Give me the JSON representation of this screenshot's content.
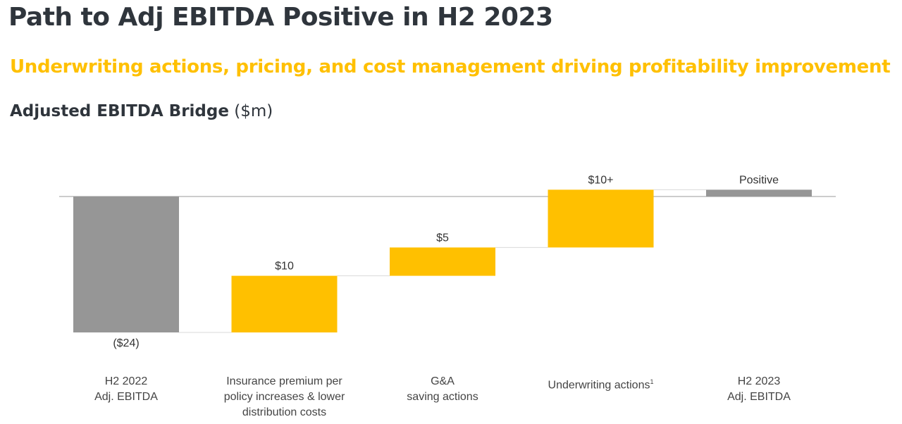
{
  "header": {
    "title": "Path to Adj EBITDA Positive in H2 2023",
    "subtitle": "Underwriting actions, pricing, and cost management driving profitability improvement",
    "chart_heading": "Adjusted EBITDA Bridge",
    "chart_unit": "($m)"
  },
  "colors": {
    "total": "#969696",
    "step": "#ffc000",
    "text": "#2f353c",
    "accent": "#ffc000"
  },
  "chart_data": {
    "type": "waterfall",
    "title": "Adjusted EBITDA Bridge ($m)",
    "ylabel": "$m",
    "categories": [
      {
        "lines": [
          "H2 2022",
          "Adj. EBITDA"
        ],
        "footnote": ""
      },
      {
        "lines": [
          "Insurance premium per",
          "policy increases & lower",
          "distribution costs"
        ],
        "footnote": ""
      },
      {
        "lines": [
          "G&A",
          "saving actions"
        ],
        "footnote": ""
      },
      {
        "lines": [
          "Underwriting actions"
        ],
        "footnote": "1"
      },
      {
        "lines": [
          "H2 2023",
          "Adj. EBITDA"
        ],
        "footnote": ""
      }
    ],
    "bars": [
      {
        "kind": "total",
        "start": 0,
        "end": -24,
        "label": "($24)"
      },
      {
        "kind": "increase",
        "start": -24,
        "end": -14,
        "label": "$10"
      },
      {
        "kind": "increase",
        "start": -14,
        "end": -9,
        "label": "$5"
      },
      {
        "kind": "increase",
        "start": -9,
        "end": 1.2,
        "label": "$10+"
      },
      {
        "kind": "total",
        "start": 0,
        "end": 1.2,
        "label": "Positive"
      }
    ],
    "ylim": [
      -24,
      1.2
    ]
  }
}
